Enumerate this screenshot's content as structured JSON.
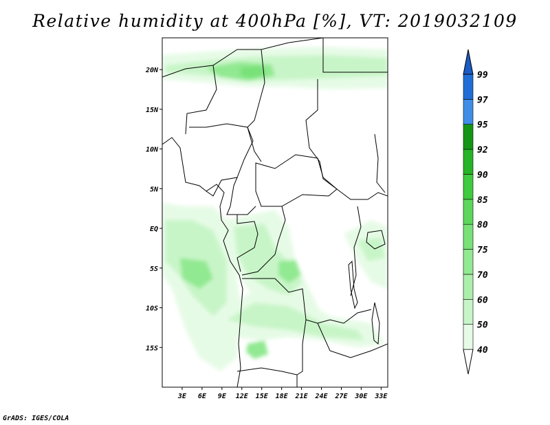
{
  "title": "Relative humidity at 400hPa [%], VT: 2019032109",
  "credit": "GrADS: IGES/COLA",
  "map": {
    "lon_range": [
      0,
      34
    ],
    "lat_range": [
      -20,
      24
    ],
    "lat_ticks": [
      {
        "value": 20,
        "label": "20N"
      },
      {
        "value": 15,
        "label": "15N"
      },
      {
        "value": 10,
        "label": "10N"
      },
      {
        "value": 5,
        "label": "5N"
      },
      {
        "value": 0,
        "label": "EQ"
      },
      {
        "value": -5,
        "label": "5S"
      },
      {
        "value": -10,
        "label": "10S"
      },
      {
        "value": -15,
        "label": "15S"
      }
    ],
    "lon_ticks": [
      {
        "value": 3,
        "label": "3E"
      },
      {
        "value": 6,
        "label": "6E"
      },
      {
        "value": 9,
        "label": "9E"
      },
      {
        "value": 12,
        "label": "12E"
      },
      {
        "value": 15,
        "label": "15E"
      },
      {
        "value": 18,
        "label": "18E"
      },
      {
        "value": 21,
        "label": "21E"
      },
      {
        "value": 24,
        "label": "24E"
      },
      {
        "value": 27,
        "label": "27E"
      },
      {
        "value": 30,
        "label": "30E"
      },
      {
        "value": 33,
        "label": "33E"
      }
    ]
  },
  "colorbar": {
    "levels": [
      {
        "label": "40",
        "color": "#e6fbe6"
      },
      {
        "label": "50",
        "color": "#c8f5c8"
      },
      {
        "label": "60",
        "color": "#abefab"
      },
      {
        "label": "70",
        "color": "#91e991"
      },
      {
        "label": "75",
        "color": "#78e178"
      },
      {
        "label": "80",
        "color": "#5cd75c"
      },
      {
        "label": "85",
        "color": "#3ecb3e"
      },
      {
        "label": "90",
        "color": "#25b425"
      },
      {
        "label": "92",
        "color": "#149614"
      },
      {
        "label": "95",
        "color": "#3e8ee8"
      },
      {
        "label": "97",
        "color": "#1f6ed8"
      },
      {
        "label": "99",
        "color": "#1a5bc4"
      }
    ],
    "below_color": "#ffffff"
  }
}
